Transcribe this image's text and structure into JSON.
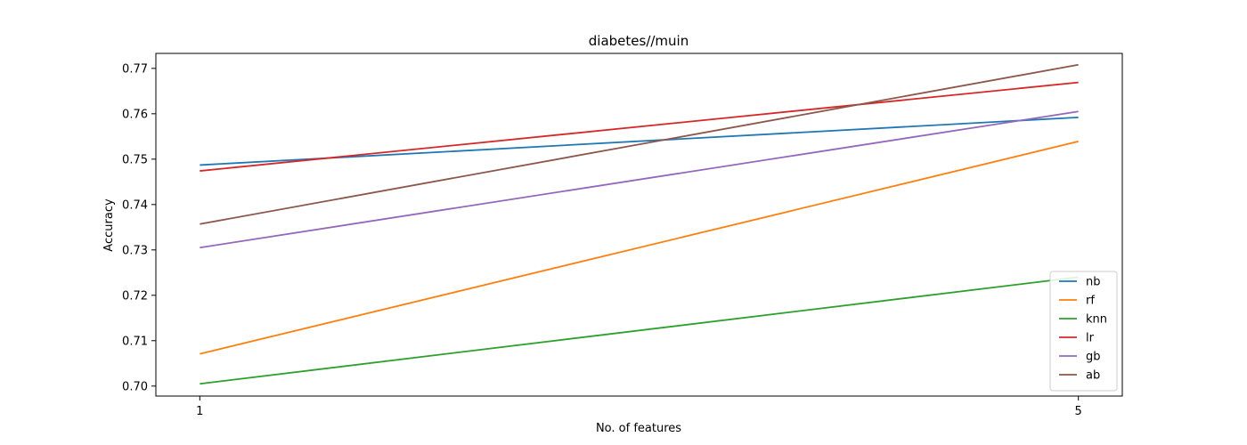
{
  "chart_data": {
    "type": "line",
    "title": "diabetes//muin",
    "xlabel": "No. of features",
    "ylabel": "Accuracy",
    "x": [
      1,
      5
    ],
    "x_tick_labels": [
      "1",
      "5"
    ],
    "xlim": [
      0.8,
      5.2
    ],
    "ylim": [
      0.6978,
      0.7733
    ],
    "y_ticks": [
      0.7,
      0.71,
      0.72,
      0.73,
      0.74,
      0.75,
      0.76,
      0.77
    ],
    "y_tick_labels": [
      "0.70",
      "0.71",
      "0.72",
      "0.73",
      "0.74",
      "0.75",
      "0.76",
      "0.77"
    ],
    "grid": false,
    "legend_position": "lower-right",
    "series": [
      {
        "name": "nb",
        "color": "#1f77b4",
        "values": [
          0.7487,
          0.7592
        ]
      },
      {
        "name": "rf",
        "color": "#ff7f0e",
        "values": [
          0.7071,
          0.7539
        ]
      },
      {
        "name": "knn",
        "color": "#2ca02c",
        "values": [
          0.7005,
          0.724
        ]
      },
      {
        "name": "lr",
        "color": "#d62728",
        "values": [
          0.7474,
          0.7669
        ]
      },
      {
        "name": "gb",
        "color": "#9467bd",
        "values": [
          0.7305,
          0.7605
        ]
      },
      {
        "name": "ab",
        "color": "#8c564b",
        "values": [
          0.7357,
          0.7708
        ]
      }
    ]
  }
}
